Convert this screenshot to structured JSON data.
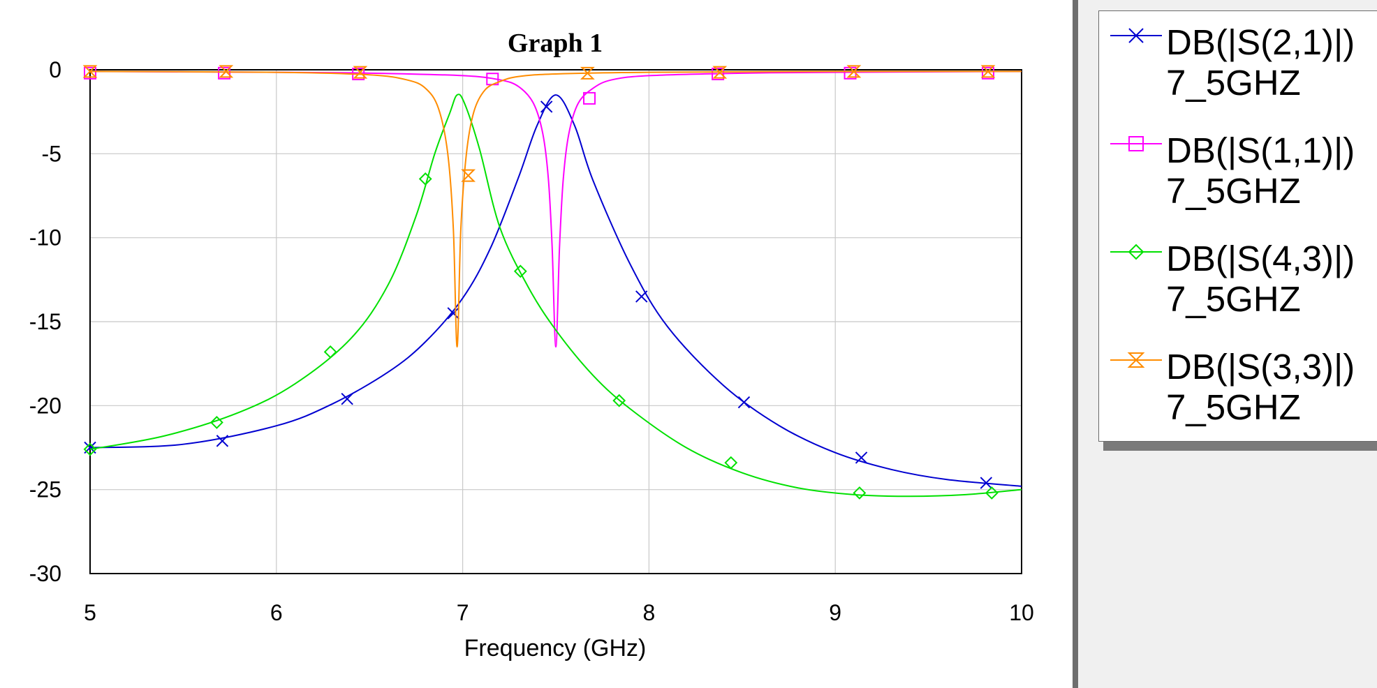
{
  "chart_data": {
    "type": "line",
    "title": "Graph 1",
    "xlabel": "Frequency (GHz)",
    "ylabel": "",
    "xlim": [
      5,
      10
    ],
    "ylim": [
      -30,
      0
    ],
    "xticks": [
      5,
      6,
      7,
      8,
      9,
      10
    ],
    "yticks": [
      0,
      -5,
      -10,
      -15,
      -20,
      -25,
      -30
    ],
    "grid": true,
    "legend_position": "right",
    "series": [
      {
        "name": "DB(|S(2,1)|)",
        "subname": "7_5GHZ",
        "color": "#0000d0",
        "marker": "x",
        "x": [
          5.0,
          5.5,
          6.0,
          6.3,
          6.6,
          6.8,
          7.0,
          7.15,
          7.3,
          7.4,
          7.5,
          7.6,
          7.7,
          7.9,
          8.1,
          8.4,
          8.7,
          9.0,
          9.3,
          9.6,
          10.0
        ],
        "y": [
          -22.5,
          -22.3,
          -21.2,
          -19.9,
          -18.0,
          -16.2,
          -13.6,
          -10.6,
          -6.4,
          -3.3,
          -1.5,
          -3.3,
          -6.6,
          -11.6,
          -15.3,
          -18.8,
          -21.2,
          -22.8,
          -23.8,
          -24.4,
          -24.8
        ],
        "markers_x": [
          5.0,
          5.71,
          6.38,
          6.95,
          7.45,
          7.96,
          8.51,
          9.14,
          9.81
        ],
        "markers_y": [
          -22.5,
          -22.1,
          -19.6,
          -14.5,
          -2.2,
          -13.5,
          -19.8,
          -23.1,
          -24.6
        ]
      },
      {
        "name": "DB(|S(1,1)|)",
        "subname": "7_5GHZ",
        "color": "#ff00ff",
        "marker": "square",
        "x": [
          5.0,
          6.0,
          6.5,
          7.0,
          7.2,
          7.3,
          7.38,
          7.43,
          7.46,
          7.48,
          7.5,
          7.52,
          7.54,
          7.57,
          7.62,
          7.7,
          7.8,
          8.0,
          8.5,
          9.0,
          10.0
        ],
        "y": [
          -0.1,
          -0.15,
          -0.2,
          -0.35,
          -0.6,
          -1.0,
          -2.0,
          -3.8,
          -6.5,
          -10.5,
          -16.5,
          -10.5,
          -6.5,
          -3.8,
          -2.0,
          -1.1,
          -0.6,
          -0.35,
          -0.2,
          -0.15,
          -0.1
        ],
        "markers_x": [
          5.0,
          5.72,
          6.44,
          7.16,
          7.68,
          8.37,
          9.08,
          9.82
        ],
        "markers_y": [
          -0.2,
          -0.2,
          -0.25,
          -0.55,
          -1.7,
          -0.25,
          -0.2,
          -0.2
        ]
      },
      {
        "name": "DB(|S(4,3)|)",
        "subname": "7_5GHZ",
        "color": "#00e000",
        "marker": "diamond",
        "x": [
          5.0,
          5.4,
          5.8,
          6.1,
          6.4,
          6.6,
          6.75,
          6.85,
          6.93,
          6.97,
          7.01,
          7.09,
          7.2,
          7.35,
          7.5,
          7.7,
          7.9,
          8.2,
          8.5,
          8.8,
          9.1,
          9.4,
          9.7,
          10.0
        ],
        "y": [
          -22.6,
          -21.8,
          -20.4,
          -18.7,
          -16.0,
          -12.8,
          -8.7,
          -5.0,
          -2.6,
          -1.5,
          -2.0,
          -4.7,
          -9.4,
          -12.9,
          -15.5,
          -18.2,
          -20.2,
          -22.5,
          -24.0,
          -24.9,
          -25.3,
          -25.4,
          -25.3,
          -25.0
        ],
        "markers_x": [
          5.0,
          5.68,
          6.29,
          6.8,
          7.31,
          7.84,
          8.44,
          9.13,
          9.84
        ],
        "markers_y": [
          -22.6,
          -21.0,
          -16.8,
          -6.5,
          -12.0,
          -19.7,
          -23.4,
          -25.2,
          -25.2
        ]
      },
      {
        "name": "DB(|S(3,3)|)",
        "subname": "7_5GHZ",
        "color": "#ff8c00",
        "marker": "hourglass",
        "x": [
          5.0,
          6.0,
          6.5,
          6.7,
          6.8,
          6.87,
          6.92,
          6.95,
          6.97,
          6.99,
          7.02,
          7.06,
          7.12,
          7.2,
          7.3,
          7.5,
          8.0,
          9.0,
          10.0
        ],
        "y": [
          -0.1,
          -0.15,
          -0.3,
          -0.6,
          -1.1,
          -2.3,
          -5.0,
          -9.5,
          -16.5,
          -9.5,
          -5.0,
          -2.5,
          -1.2,
          -0.7,
          -0.4,
          -0.25,
          -0.15,
          -0.1,
          -0.1
        ],
        "markers_x": [
          5.0,
          5.73,
          6.45,
          7.03,
          7.67,
          8.38,
          9.1,
          9.82
        ],
        "markers_y": [
          -0.1,
          -0.1,
          -0.15,
          -6.3,
          -0.2,
          -0.15,
          -0.1,
          -0.1
        ]
      }
    ]
  }
}
